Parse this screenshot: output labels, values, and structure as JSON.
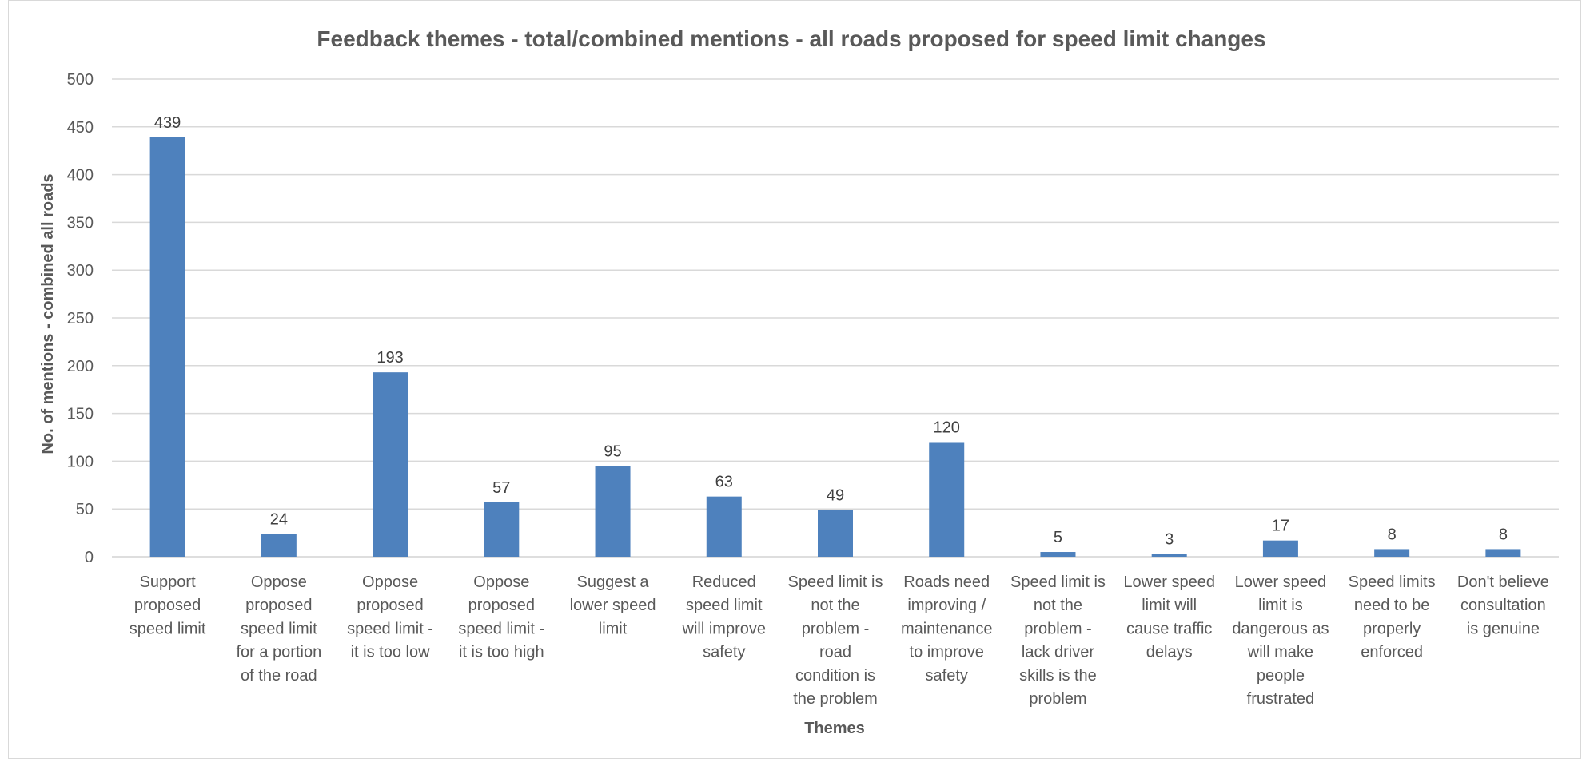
{
  "chart_data": {
    "type": "bar",
    "title": "Feedback themes - total/combined mentions - all roads proposed for speed limit changes",
    "xlabel": "Themes",
    "ylabel": "No. of mentions - combined all roads",
    "ylim": [
      0,
      500
    ],
    "yticks": [
      "0",
      "50",
      "100",
      "150",
      "200",
      "250",
      "300",
      "350",
      "400",
      "450",
      "500"
    ],
    "grid": true,
    "legend": "none",
    "color": "#4e81bd",
    "categories": [
      [
        "Support",
        "proposed",
        "speed limit"
      ],
      [
        "Oppose",
        "proposed",
        "speed limit",
        "for a portion",
        "of the road"
      ],
      [
        "Oppose",
        "proposed",
        "speed limit -",
        "it is too low"
      ],
      [
        "Oppose",
        "proposed",
        "speed limit -",
        "it is too high"
      ],
      [
        "Suggest a",
        "lower speed",
        "limit"
      ],
      [
        "Reduced",
        "speed limit",
        "will improve",
        "safety"
      ],
      [
        "Speed limit is",
        "not the",
        "problem -",
        "road",
        "condition is",
        "the problem"
      ],
      [
        "Roads need",
        "improving /",
        "maintenance",
        "to improve",
        "safety"
      ],
      [
        "Speed limit is",
        "not the",
        "problem -",
        "lack driver",
        "skills is the",
        "problem"
      ],
      [
        "Lower speed",
        "limit will",
        "cause traffic",
        "delays"
      ],
      [
        "Lower speed",
        "limit is",
        "dangerous as",
        "will make",
        "people",
        "frustrated"
      ],
      [
        "Speed limits",
        "need to be",
        "properly",
        "enforced"
      ],
      [
        "Don't believe",
        "consultation",
        "is genuine"
      ]
    ],
    "values": [
      439,
      24,
      193,
      57,
      95,
      63,
      49,
      120,
      5,
      3,
      17,
      8,
      8
    ]
  }
}
